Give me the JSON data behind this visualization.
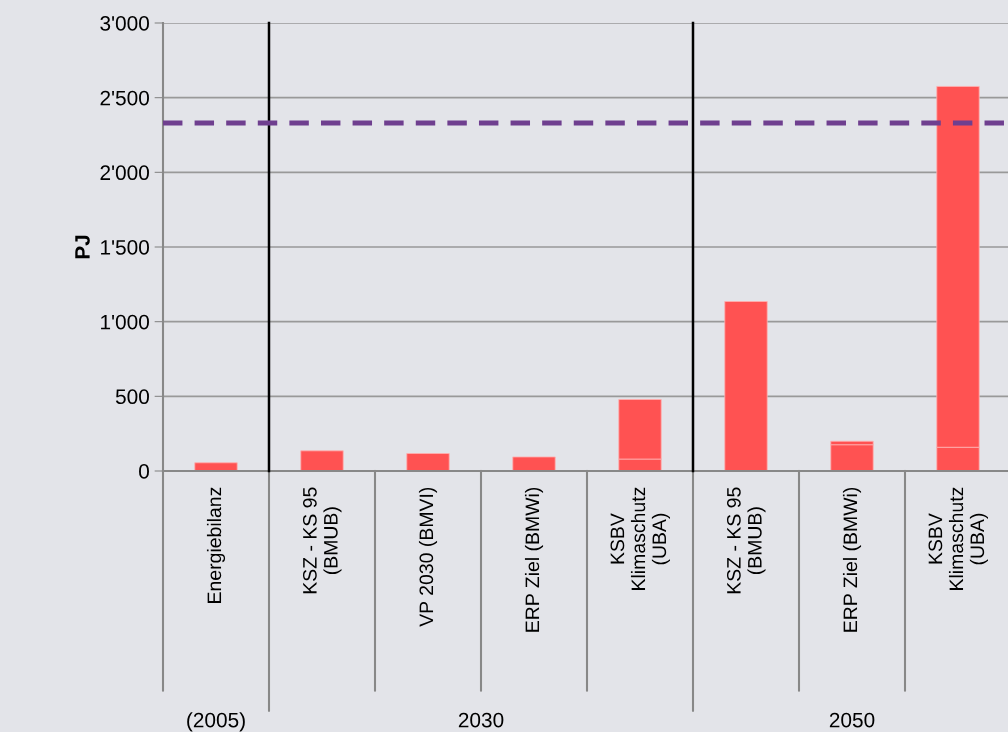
{
  "chart_data": {
    "type": "bar",
    "stacked": true,
    "ylabel": "PJ",
    "categories": [
      "Energiebilanz",
      "KSZ - KS 95\n(BMUB)",
      "VP 2030 (BMVI)",
      "ERP Ziel (BMWi)",
      "KSBV\nKlimaschutz\n(UBA)",
      "KSZ - KS 95\n(BMUB)",
      "ERP Ziel (BMWi)",
      "KSBV\nKlimaschutz\n(UBA)"
    ],
    "series": [
      {
        "color": "#ff5252",
        "values": [
          55,
          135,
          117,
          94,
          80,
          1135,
          176,
          159
        ]
      },
      {
        "color": "#ff5252",
        "values": [
          null,
          null,
          null,
          null,
          399,
          null,
          23,
          2416
        ]
      }
    ],
    "ylim": [
      0,
      3000
    ],
    "yticks": [
      {
        "value": 0,
        "label": "0"
      },
      {
        "value": 500,
        "label": "500"
      },
      {
        "value": 1000,
        "label": "1'000"
      },
      {
        "value": 1500,
        "label": "1'500"
      },
      {
        "value": 2000,
        "label": "2'000"
      },
      {
        "value": 2500,
        "label": "2'500"
      },
      {
        "value": 3000,
        "label": "3'000"
      }
    ],
    "grid": "y",
    "ref_lines": [
      {
        "axis": "y",
        "value": 2330,
        "color": "#6f3f8f",
        "line_style": "dashed"
      }
    ],
    "annotations": [
      "(2005)",
      "2030",
      "2050"
    ]
  }
}
